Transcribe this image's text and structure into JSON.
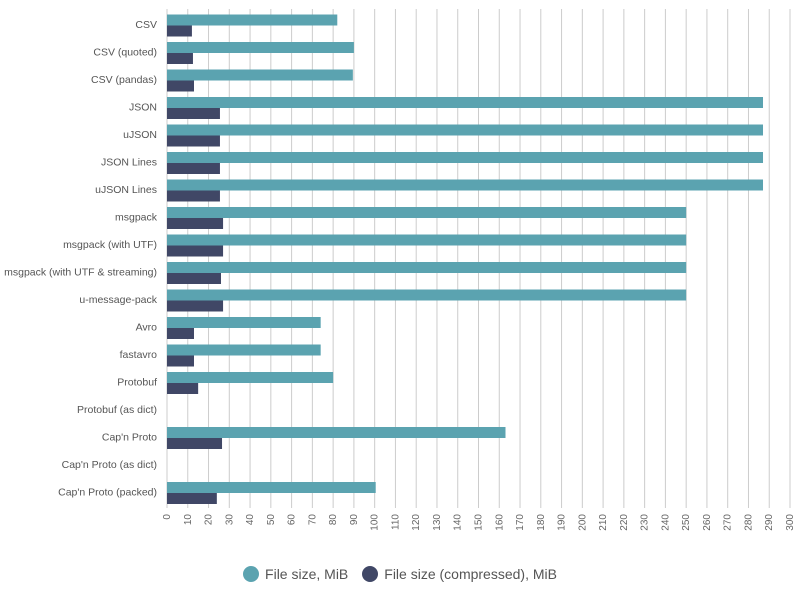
{
  "chart_data": {
    "type": "bar",
    "orientation": "horizontal",
    "title": "",
    "xlabel": "",
    "ylabel": "",
    "xlim": [
      0,
      300
    ],
    "x_ticks": [
      0,
      10,
      20,
      30,
      40,
      50,
      60,
      70,
      80,
      90,
      100,
      110,
      120,
      130,
      140,
      150,
      160,
      170,
      180,
      190,
      200,
      210,
      220,
      230,
      240,
      250,
      260,
      270,
      280,
      290,
      300
    ],
    "grid": true,
    "legend_position": "bottom",
    "categories": [
      "CSV",
      "CSV (quoted)",
      "CSV (pandas)",
      "JSON",
      "uJSON",
      "JSON Lines",
      "uJSON Lines",
      "msgpack",
      "msgpack (with UTF)",
      "msgpack (with UTF & streaming)",
      "u-message-pack",
      "Avro",
      "fastavro",
      "Protobuf",
      "Protobuf (as dict)",
      "Cap'n Proto",
      "Cap'n Proto (as dict)",
      "Cap'n Proto (packed)"
    ],
    "series": [
      {
        "name": "File size, MiB",
        "color": "#5ba3b0",
        "values": [
          82,
          90,
          89.5,
          287,
          287,
          287,
          287,
          250,
          250,
          250,
          250,
          74,
          74,
          80,
          null,
          163,
          null,
          100.5
        ]
      },
      {
        "name": "File size (compressed), MiB",
        "color": "#404766",
        "values": [
          12,
          12.5,
          13,
          25.5,
          25.5,
          25.5,
          25.5,
          27,
          27,
          26,
          27,
          13,
          13,
          15,
          null,
          26.5,
          null,
          24
        ]
      }
    ]
  }
}
